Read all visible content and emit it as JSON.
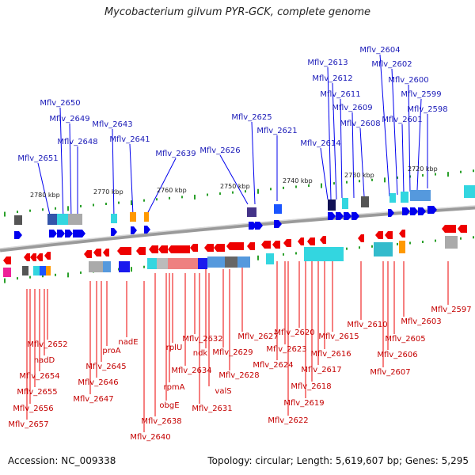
{
  "title": "Mycobacterium gilvum PYR-GCK, complete genome",
  "footer": {
    "accession": "Accession: NC_009338",
    "stats": "Topology: circular; Length: 5,619,607 bp; Genes: 5,295"
  },
  "colors": {
    "forward": "#0000ee",
    "reverse": "#ee0000",
    "backbone": "#808080",
    "tick": "#2aa02a"
  },
  "kbp_ticks": [
    "2720 kbp",
    "2730 kbp",
    "2740 kbp",
    "2750 kbp",
    "2760 kbp",
    "2770 kbp",
    "2780 kbp"
  ],
  "forward_genes": [
    "Mflv_2598",
    "Mflv_2599",
    "Mflv_2600",
    "Mflv_2601",
    "Mflv_2602",
    "Mflv_2604",
    "Mflv_2608",
    "Mflv_2609",
    "Mflv_2611",
    "Mflv_2612",
    "Mflv_2613",
    "Mflv_2614",
    "Mflv_2621",
    "Mflv_2625",
    "Mflv_2626",
    "Mflv_2639",
    "Mflv_2641",
    "Mflv_2643",
    "Mflv_2648",
    "Mflv_2649",
    "Mflv_2650",
    "Mflv_2651"
  ],
  "reverse_genes": [
    "Mflv_2597",
    "Mflv_2603",
    "Mflv_2605",
    "Mflv_2606",
    "Mflv_2607",
    "Mflv_2610",
    "Mflv_2615",
    "Mflv_2616",
    "Mflv_2617",
    "Mflv_2618",
    "Mflv_2619",
    "Mflv_2620",
    "Mflv_2622",
    "Mflv_2623",
    "Mflv_2624",
    "Mflv_2627",
    "valS",
    "Mflv_2628",
    "Mflv_2629",
    "ndk",
    "Mflv_2631",
    "Mflv_2632",
    "Mflv_2634",
    "rplU",
    "rpmA",
    "obgE",
    "Mflv_2638",
    "Mflv_2640",
    "nadE",
    "proA",
    "Mflv_2645",
    "Mflv_2646",
    "Mflv_2647",
    "nadD",
    "Mflv_2652",
    "Mflv_2654",
    "Mflv_2655",
    "Mflv_2656",
    "Mflv_2657"
  ]
}
